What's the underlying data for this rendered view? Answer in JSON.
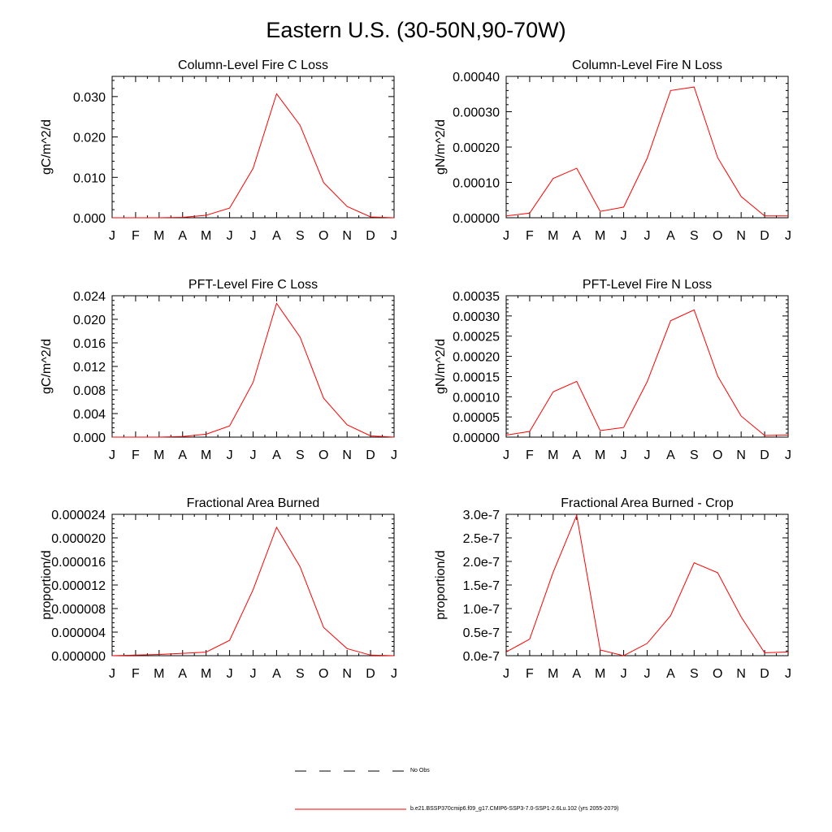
{
  "title": "Eastern U.S. (30-50N,90-70W)",
  "colors": {
    "model_line": "#ff0000",
    "axis": "#000000",
    "obs_line": "#000000"
  },
  "legend": {
    "obs_label": "No Obs",
    "model_label": "b.e21.BSSP370cmip6.f09_g17.CMIP6-SSP3-7.0-SSP1-2.6Lu.102 (yrs 2055-2079)"
  },
  "chart_data": [
    {
      "type": "line",
      "title": "Column-Level Fire C Loss",
      "ylabel": "gC/m^2/d",
      "categories": [
        "J",
        "F",
        "M",
        "A",
        "M",
        "J",
        "J",
        "A",
        "S",
        "O",
        "N",
        "D",
        "J"
      ],
      "ylim": [
        0,
        0.035
      ],
      "yticks": [
        0.0,
        0.01,
        0.02,
        0.03
      ],
      "ytick_labels": [
        "0.000",
        "0.010",
        "0.020",
        "0.030"
      ],
      "series": [
        {
          "values": [
            0.0,
            0.0,
            0.0,
            0.0001,
            0.0006,
            0.0024,
            0.0122,
            0.0307,
            0.0229,
            0.0087,
            0.0028,
            0.0002,
            0.0
          ]
        }
      ]
    },
    {
      "type": "line",
      "title": "Column-Level Fire N Loss",
      "ylabel": "gN/m^2/d",
      "categories": [
        "J",
        "F",
        "M",
        "A",
        "M",
        "J",
        "J",
        "A",
        "S",
        "O",
        "N",
        "D",
        "J"
      ],
      "ylim": [
        0,
        0.0004
      ],
      "yticks": [
        0.0,
        0.0001,
        0.0002,
        0.0003,
        0.0004
      ],
      "ytick_labels": [
        "0.00000",
        "0.00010",
        "0.00020",
        "0.00030",
        "0.00040"
      ],
      "series": [
        {
          "values": [
            5e-06,
            1.3e-05,
            0.000111,
            0.00014,
            1.8e-05,
            3e-05,
            0.000168,
            0.00036,
            0.00037,
            0.00017,
            6e-05,
            5e-06,
            5e-06
          ]
        }
      ]
    },
    {
      "type": "line",
      "title": "PFT-Level Fire C Loss",
      "ylabel": "gC/m^2/d",
      "categories": [
        "J",
        "F",
        "M",
        "A",
        "M",
        "J",
        "J",
        "A",
        "S",
        "O",
        "N",
        "D",
        "J"
      ],
      "ylim": [
        0,
        0.024
      ],
      "yticks": [
        0.0,
        0.004,
        0.008,
        0.012,
        0.016,
        0.02,
        0.024
      ],
      "ytick_labels": [
        "0.000",
        "0.004",
        "0.008",
        "0.012",
        "0.016",
        "0.020",
        "0.024"
      ],
      "series": [
        {
          "values": [
            0.0,
            0.0,
            0.0,
            0.0001,
            0.0005,
            0.0019,
            0.0093,
            0.0227,
            0.017,
            0.0066,
            0.0021,
            0.0002,
            0.0
          ]
        }
      ]
    },
    {
      "type": "line",
      "title": "PFT-Level Fire N Loss",
      "ylabel": "gN/m^2/d",
      "categories": [
        "J",
        "F",
        "M",
        "A",
        "M",
        "J",
        "J",
        "A",
        "S",
        "O",
        "N",
        "D",
        "J"
      ],
      "ylim": [
        0,
        0.00035
      ],
      "yticks": [
        0.0,
        5e-05,
        0.0001,
        0.00015,
        0.0002,
        0.00025,
        0.0003,
        0.00035
      ],
      "ytick_labels": [
        "0.00000",
        "0.00005",
        "0.00010",
        "0.00015",
        "0.00020",
        "0.00025",
        "0.00030",
        "0.00035"
      ],
      "series": [
        {
          "values": [
            5e-06,
            1.4e-05,
            0.000112,
            0.000138,
            1.6e-05,
            2.4e-05,
            0.000137,
            0.000288,
            0.000315,
            0.000151,
            5.2e-05,
            4e-06,
            5e-06
          ]
        }
      ]
    },
    {
      "type": "line",
      "title": "Fractional Area Burned",
      "ylabel": "proportion/d",
      "categories": [
        "J",
        "F",
        "M",
        "A",
        "M",
        "J",
        "J",
        "A",
        "S",
        "O",
        "N",
        "D",
        "J"
      ],
      "ylim": [
        0,
        2.4e-05
      ],
      "yticks": [
        0.0,
        4e-06,
        8e-06,
        1.2e-05,
        1.6e-05,
        2e-05,
        2.4e-05
      ],
      "ytick_labels": [
        "0.000000",
        "0.000004",
        "0.000008",
        "0.000012",
        "0.000016",
        "0.000020",
        "0.000024"
      ],
      "series": [
        {
          "values": [
            0.0,
            1e-07,
            2e-07,
            4e-07,
            6e-07,
            2.6e-06,
            1.12e-05,
            2.18e-05,
            1.51e-05,
            4.8e-06,
            1.2e-06,
            1e-07,
            0.0
          ]
        }
      ]
    },
    {
      "type": "line",
      "title": "Fractional Area Burned - Crop",
      "ylabel": "proportion/d",
      "categories": [
        "J",
        "F",
        "M",
        "A",
        "M",
        "J",
        "J",
        "A",
        "S",
        "O",
        "N",
        "D",
        "J"
      ],
      "ylim": [
        0,
        3e-07
      ],
      "yticks": [
        0.0,
        5e-08,
        1e-07,
        1.5e-07,
        2e-07,
        2.5e-07,
        3e-07
      ],
      "ytick_labels": [
        "0.0e-7",
        "0.5e-7",
        "1.0e-7",
        "1.5e-7",
        "2.0e-7",
        "2.5e-7",
        "3.0e-7"
      ],
      "series": [
        {
          "values": [
            8e-09,
            3.5e-08,
            1.77e-07,
            2.98e-07,
            1.2e-08,
            0.0,
            2.6e-08,
            8.5e-08,
            1.97e-07,
            1.76e-07,
            8.2e-08,
            6e-09,
            8e-09
          ]
        }
      ]
    }
  ]
}
